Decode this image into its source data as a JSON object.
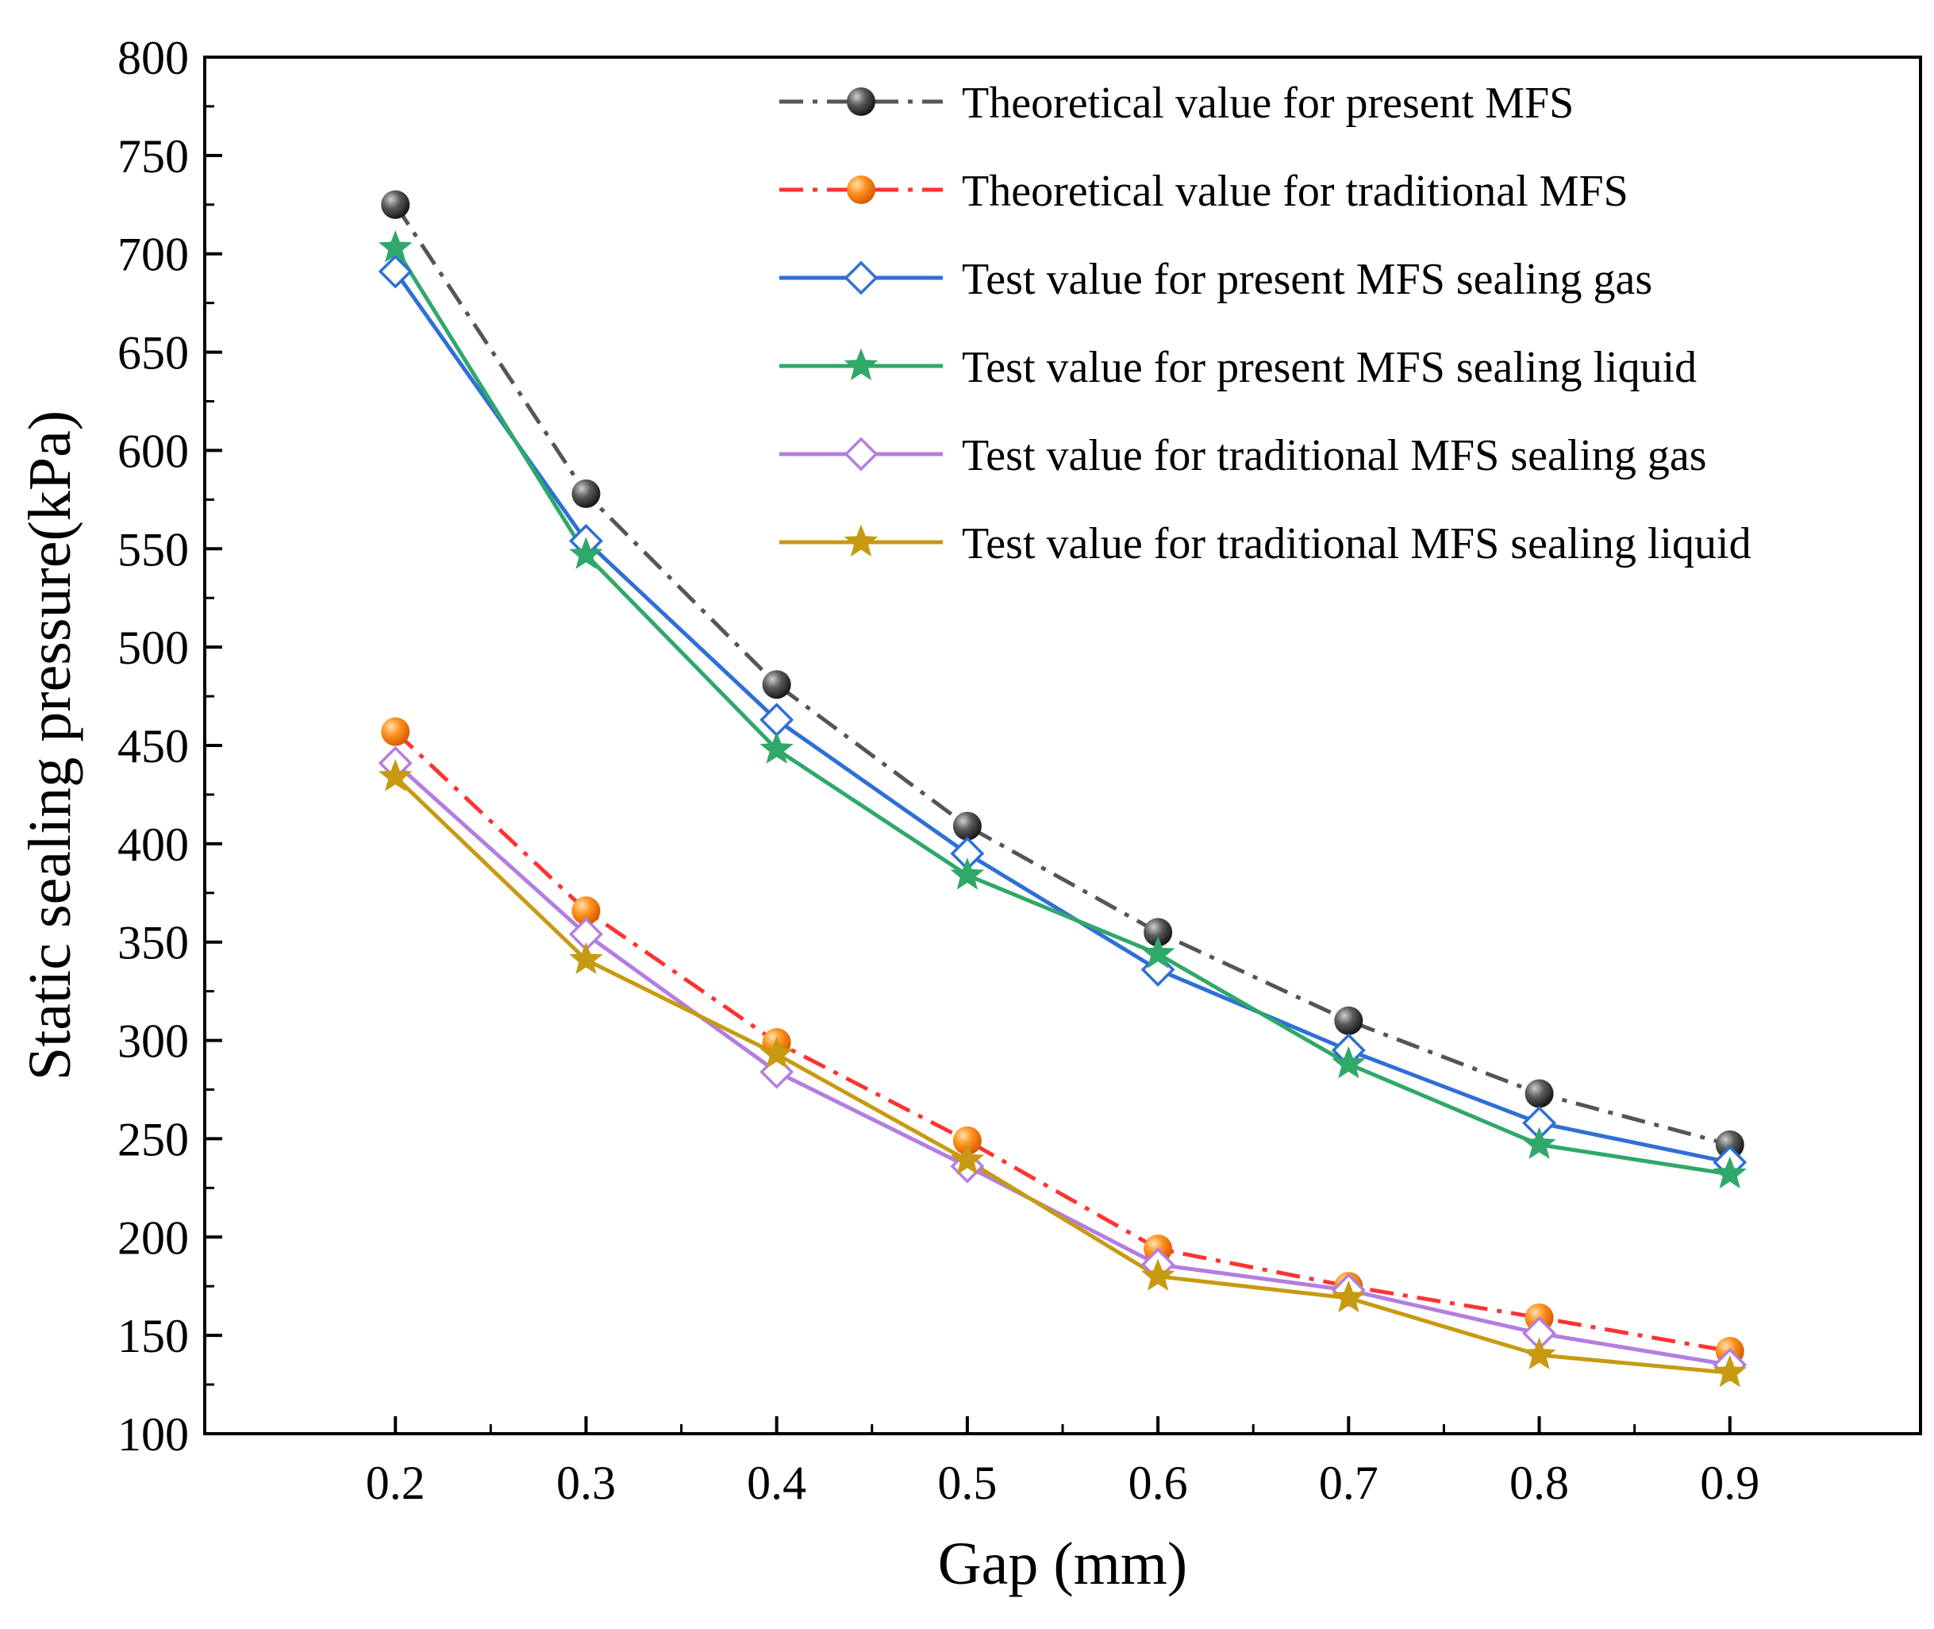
{
  "chart_data": {
    "type": "line",
    "title": "",
    "xlabel": "Gap (mm)",
    "ylabel": "Static sealing pressure(kPa)",
    "x": [
      0.2,
      0.3,
      0.4,
      0.5,
      0.6,
      0.7,
      0.8,
      0.9
    ],
    "x_tick_labels": [
      "0.2",
      "0.3",
      "0.4",
      "0.5",
      "0.6",
      "0.7",
      "0.8",
      "0.9"
    ],
    "xlim": [
      0.1,
      1.0
    ],
    "ylim": [
      100,
      800
    ],
    "y_ticks": [
      100,
      150,
      200,
      250,
      300,
      350,
      400,
      450,
      500,
      550,
      600,
      650,
      700,
      750,
      800
    ],
    "y_tick_labels": [
      "100",
      "150",
      "200",
      "250",
      "300",
      "350",
      "400",
      "450",
      "500",
      "550",
      "600",
      "650",
      "700",
      "750",
      "800"
    ],
    "grid": false,
    "legend_position": "top-right",
    "series": [
      {
        "name": "Theoretical value for present MFS",
        "color": "#555555",
        "marker": "ball-dark",
        "line": "dashdot",
        "values": [
          725,
          578,
          481,
          409,
          355,
          310,
          273,
          247
        ]
      },
      {
        "name": "Theoretical value for traditional MFS",
        "color": "#ff3333",
        "marker": "ball-orange",
        "line": "dashdot",
        "values": [
          457,
          366,
          299,
          249,
          194,
          175,
          159,
          142
        ]
      },
      {
        "name": "Test value for present MFS sealing gas",
        "color": "#2f6fd6",
        "marker": "diamond-blue",
        "line": "solid",
        "values": [
          691,
          554,
          463,
          395,
          336,
          295,
          258,
          238
        ]
      },
      {
        "name": "Test value for present MFS sealing liquid",
        "color": "#2fa86a",
        "marker": "star-green",
        "line": "solid",
        "values": [
          703,
          547,
          448,
          384,
          344,
          288,
          247,
          232
        ]
      },
      {
        "name": "Test value for traditional MFS sealing gas",
        "color": "#b37ee0",
        "marker": "diamond-violet",
        "line": "solid",
        "values": [
          441,
          354,
          284,
          236,
          186,
          173,
          151,
          135
        ]
      },
      {
        "name": "Test value  for traditional MFS sealing liquid",
        "color": "#c79a12",
        "marker": "star-gold",
        "line": "solid",
        "values": [
          434,
          341,
          293,
          239,
          180,
          169,
          140,
          131
        ]
      }
    ]
  }
}
